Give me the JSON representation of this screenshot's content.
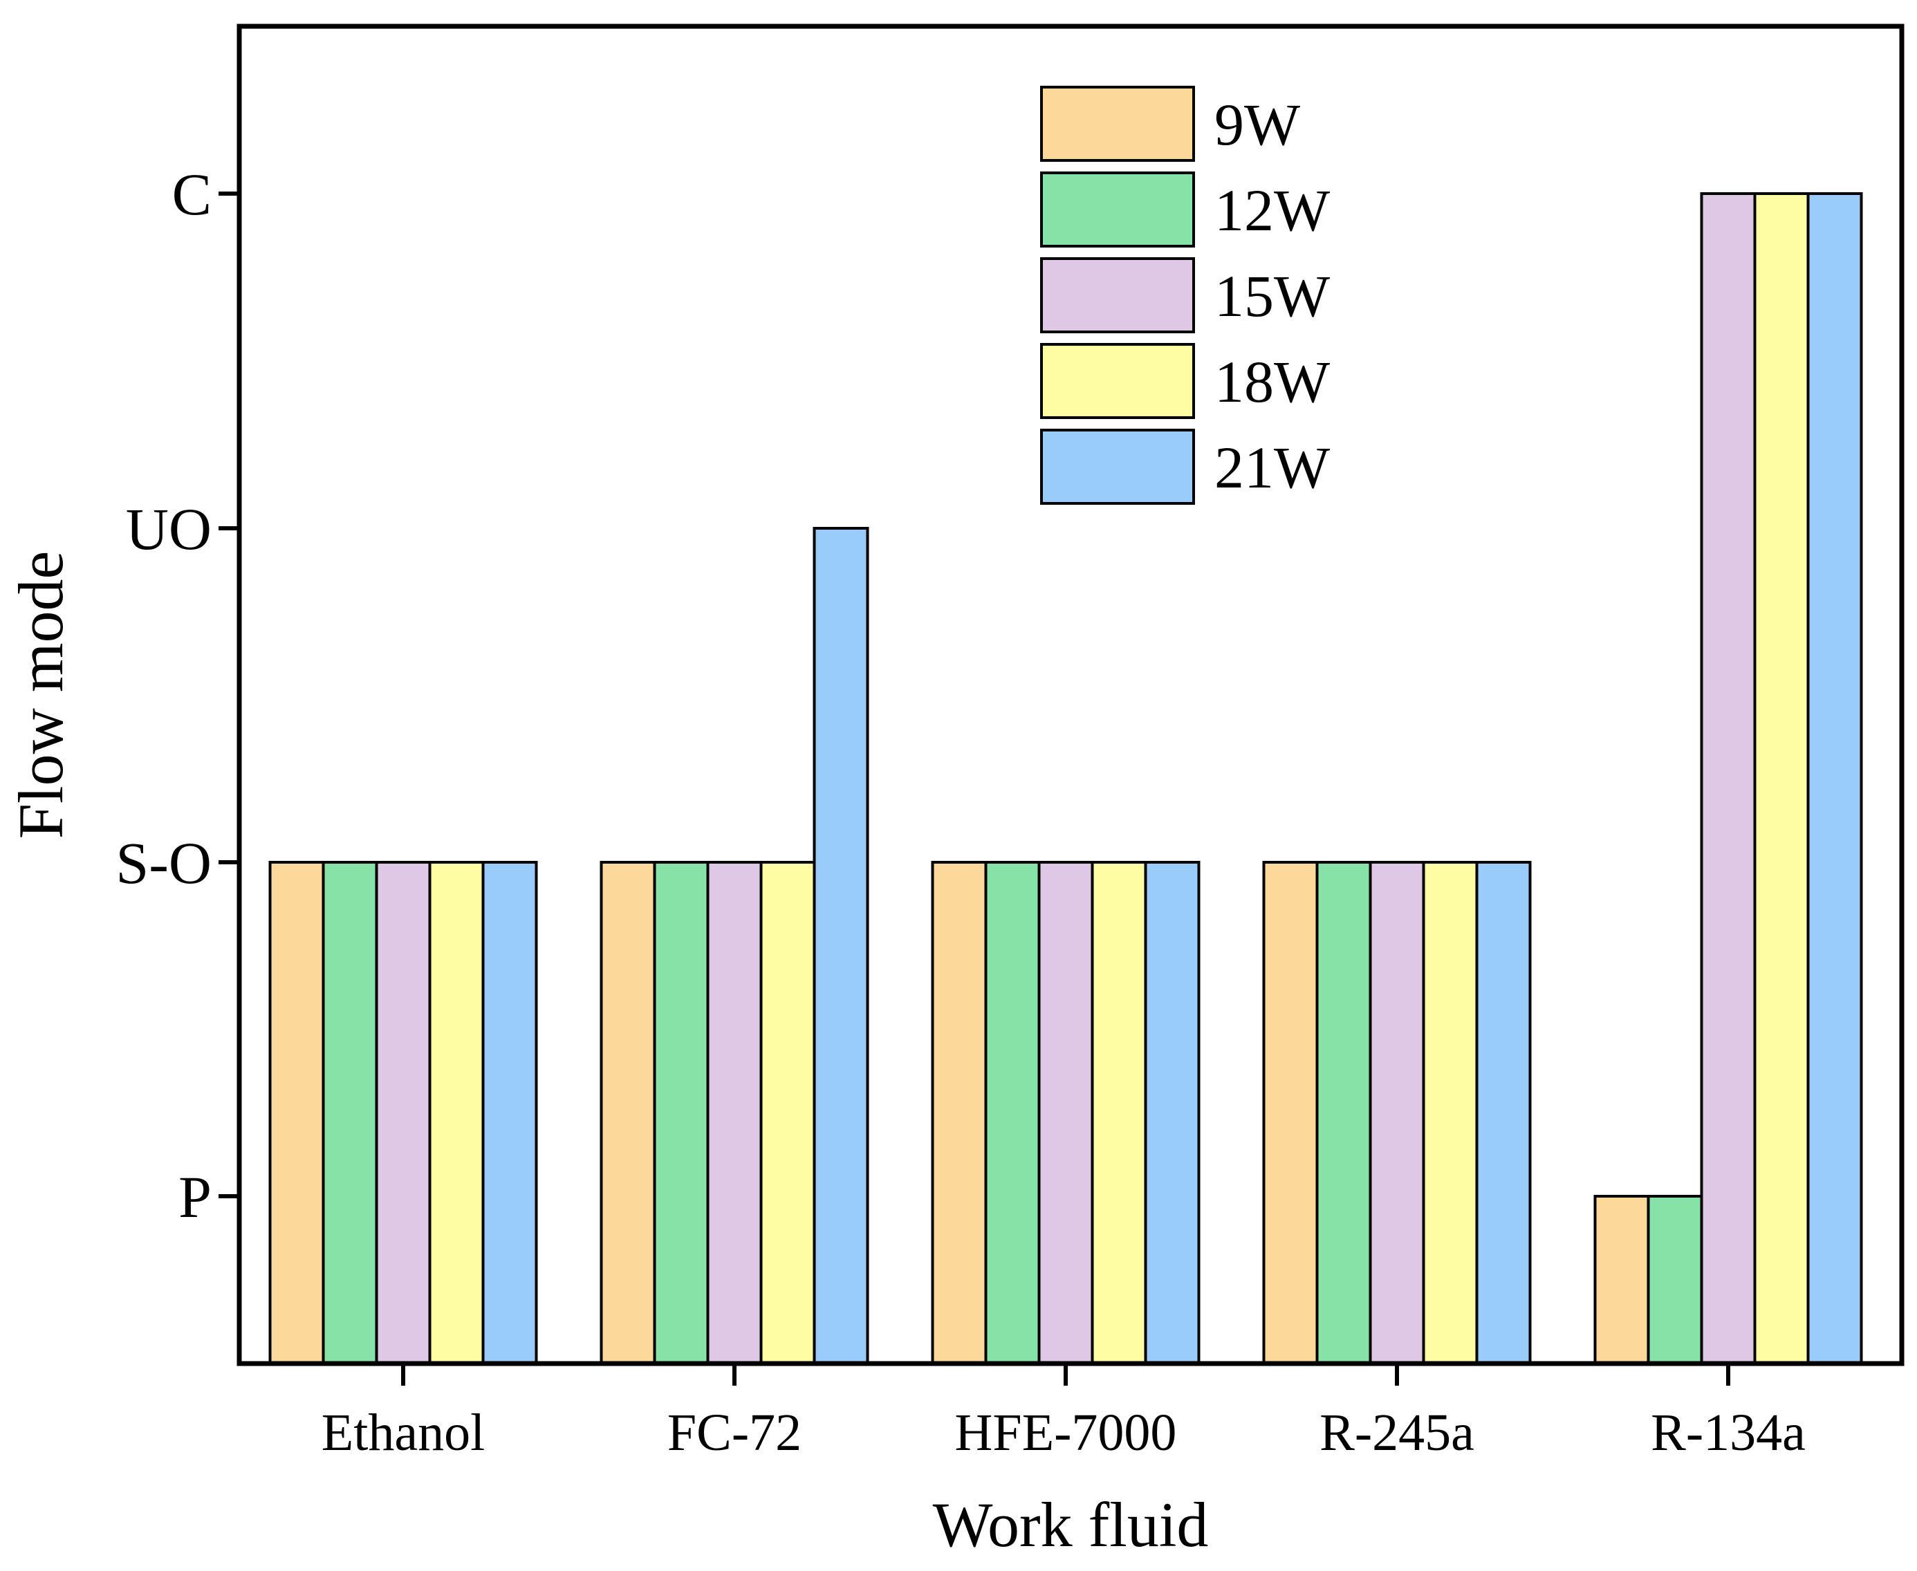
{
  "chart_data": {
    "type": "bar",
    "xlabel": "Work fluid",
    "ylabel": "Flow mode",
    "categories": [
      "Ethanol",
      "FC-72",
      "HFE-7000",
      "R-245a",
      "R-134a"
    ],
    "y_levels": [
      "P",
      "S-O",
      "UO",
      "C"
    ],
    "legend_position": "top-center",
    "grid": false,
    "series": [
      {
        "name": "9W",
        "color": "#FDD89B",
        "values": [
          "S-O",
          "S-O",
          "S-O",
          "S-O",
          "P"
        ]
      },
      {
        "name": "12W",
        "color": "#86E2A6",
        "values": [
          "S-O",
          "S-O",
          "S-O",
          "S-O",
          "P"
        ]
      },
      {
        "name": "15W",
        "color": "#DEC8E6",
        "values": [
          "S-O",
          "S-O",
          "S-O",
          "S-O",
          "C"
        ]
      },
      {
        "name": "18W",
        "color": "#FFFDA3",
        "values": [
          "S-O",
          "S-O",
          "S-O",
          "S-O",
          "C"
        ]
      },
      {
        "name": "21W",
        "color": "#99CCFB",
        "values": [
          "S-O",
          "UO",
          "S-O",
          "S-O",
          "C"
        ]
      }
    ]
  }
}
